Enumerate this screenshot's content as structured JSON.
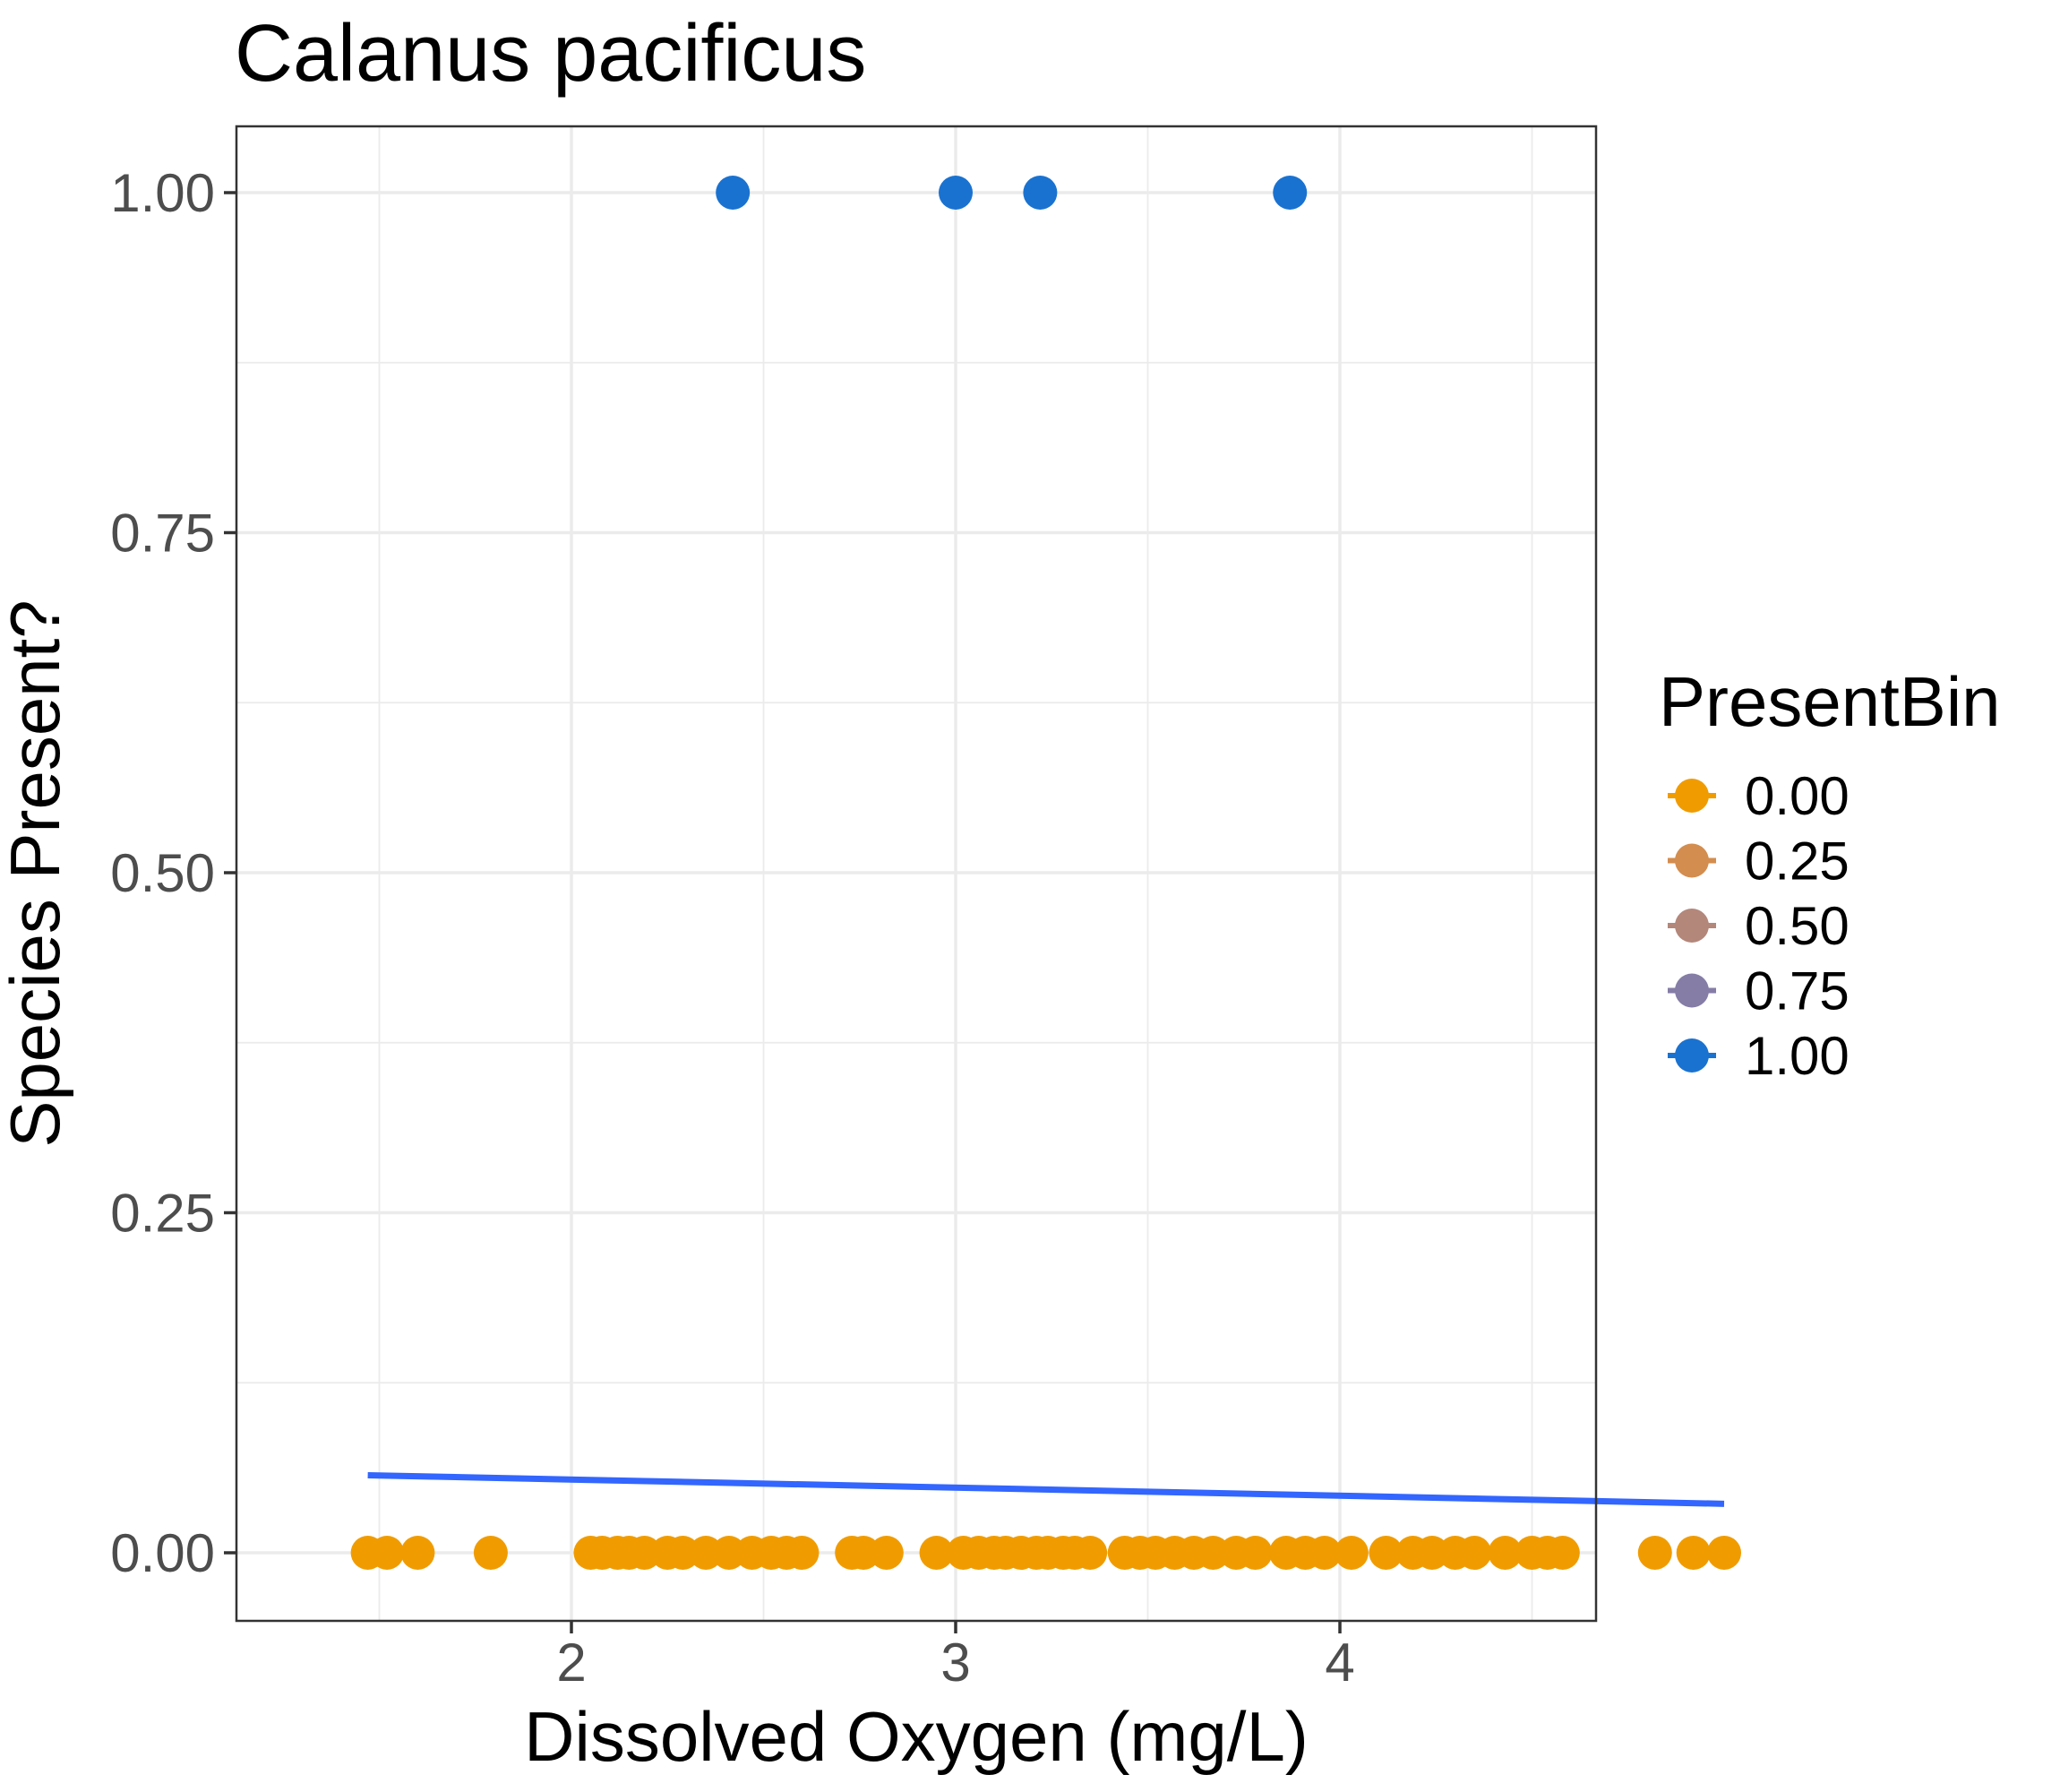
{
  "chart_data": {
    "type": "scatter",
    "title": "Calanus pacificus",
    "xlabel": "Dissolved Oxygen (mg/L)",
    "ylabel": "Species Present?",
    "xlim": [
      1.3,
      4.65
    ],
    "ylim": [
      -0.05,
      1.05
    ],
    "x_ticks": [
      2,
      3,
      4
    ],
    "x_tick_labels": [
      "2",
      "3",
      "4"
    ],
    "y_ticks": [
      0,
      0.25,
      0.5,
      0.75,
      1.0
    ],
    "y_tick_labels": [
      "0.00",
      "0.25",
      "0.50",
      "0.75",
      "1.00"
    ],
    "grid": true,
    "legend": {
      "title": "PresentBin",
      "placement": "right",
      "entries": [
        {
          "label": "0.00",
          "color": "#f09c00"
        },
        {
          "label": "0.25",
          "color": "#d38d4f"
        },
        {
          "label": "0.50",
          "color": "#b3877a"
        },
        {
          "label": "0.75",
          "color": "#857da6"
        },
        {
          "label": "1.00",
          "color": "#1a72d0"
        }
      ]
    },
    "series": [
      {
        "color": "#f09c00",
        "points": [
          [
            1.47,
            0
          ],
          [
            1.52,
            0
          ],
          [
            1.6,
            0
          ],
          [
            1.79,
            0
          ],
          [
            2.05,
            0
          ],
          [
            2.08,
            0
          ],
          [
            2.12,
            0
          ],
          [
            2.15,
            0
          ],
          [
            2.19,
            0
          ],
          [
            2.25,
            0
          ],
          [
            2.29,
            0
          ],
          [
            2.35,
            0
          ],
          [
            2.41,
            0
          ],
          [
            2.47,
            0
          ],
          [
            2.52,
            0
          ],
          [
            2.56,
            0
          ],
          [
            2.6,
            0
          ],
          [
            2.73,
            0
          ],
          [
            2.76,
            0
          ],
          [
            2.82,
            0
          ],
          [
            2.95,
            0
          ],
          [
            3.02,
            0
          ],
          [
            3.06,
            0
          ],
          [
            3.1,
            0
          ],
          [
            3.13,
            0
          ],
          [
            3.17,
            0
          ],
          [
            3.21,
            0
          ],
          [
            3.24,
            0
          ],
          [
            3.28,
            0
          ],
          [
            3.31,
            0
          ],
          [
            3.35,
            0
          ],
          [
            3.44,
            0
          ],
          [
            3.48,
            0
          ],
          [
            3.52,
            0
          ],
          [
            3.57,
            0
          ],
          [
            3.62,
            0
          ],
          [
            3.67,
            0
          ],
          [
            3.73,
            0
          ],
          [
            3.78,
            0
          ],
          [
            3.86,
            0
          ],
          [
            3.91,
            0
          ],
          [
            3.96,
            0
          ],
          [
            4.03,
            0
          ],
          [
            4.12,
            0
          ],
          [
            4.19,
            0
          ],
          [
            4.24,
            0
          ],
          [
            4.3,
            0
          ],
          [
            4.35,
            0
          ],
          [
            4.43,
            0
          ],
          [
            4.5,
            0
          ],
          [
            4.54,
            0
          ],
          [
            4.58,
            0
          ],
          [
            4.82,
            0
          ],
          [
            4.92,
            0
          ],
          [
            5.0,
            0
          ]
        ]
      },
      {
        "color": "#1a72d0",
        "points": [
          [
            2.42,
            1
          ],
          [
            3.0,
            1
          ],
          [
            3.22,
            1
          ],
          [
            3.87,
            1
          ]
        ]
      }
    ],
    "trend_line": {
      "color": "#3366ff",
      "x": [
        1.47,
        5.0
      ],
      "y": [
        0.057,
        0.036
      ]
    }
  }
}
